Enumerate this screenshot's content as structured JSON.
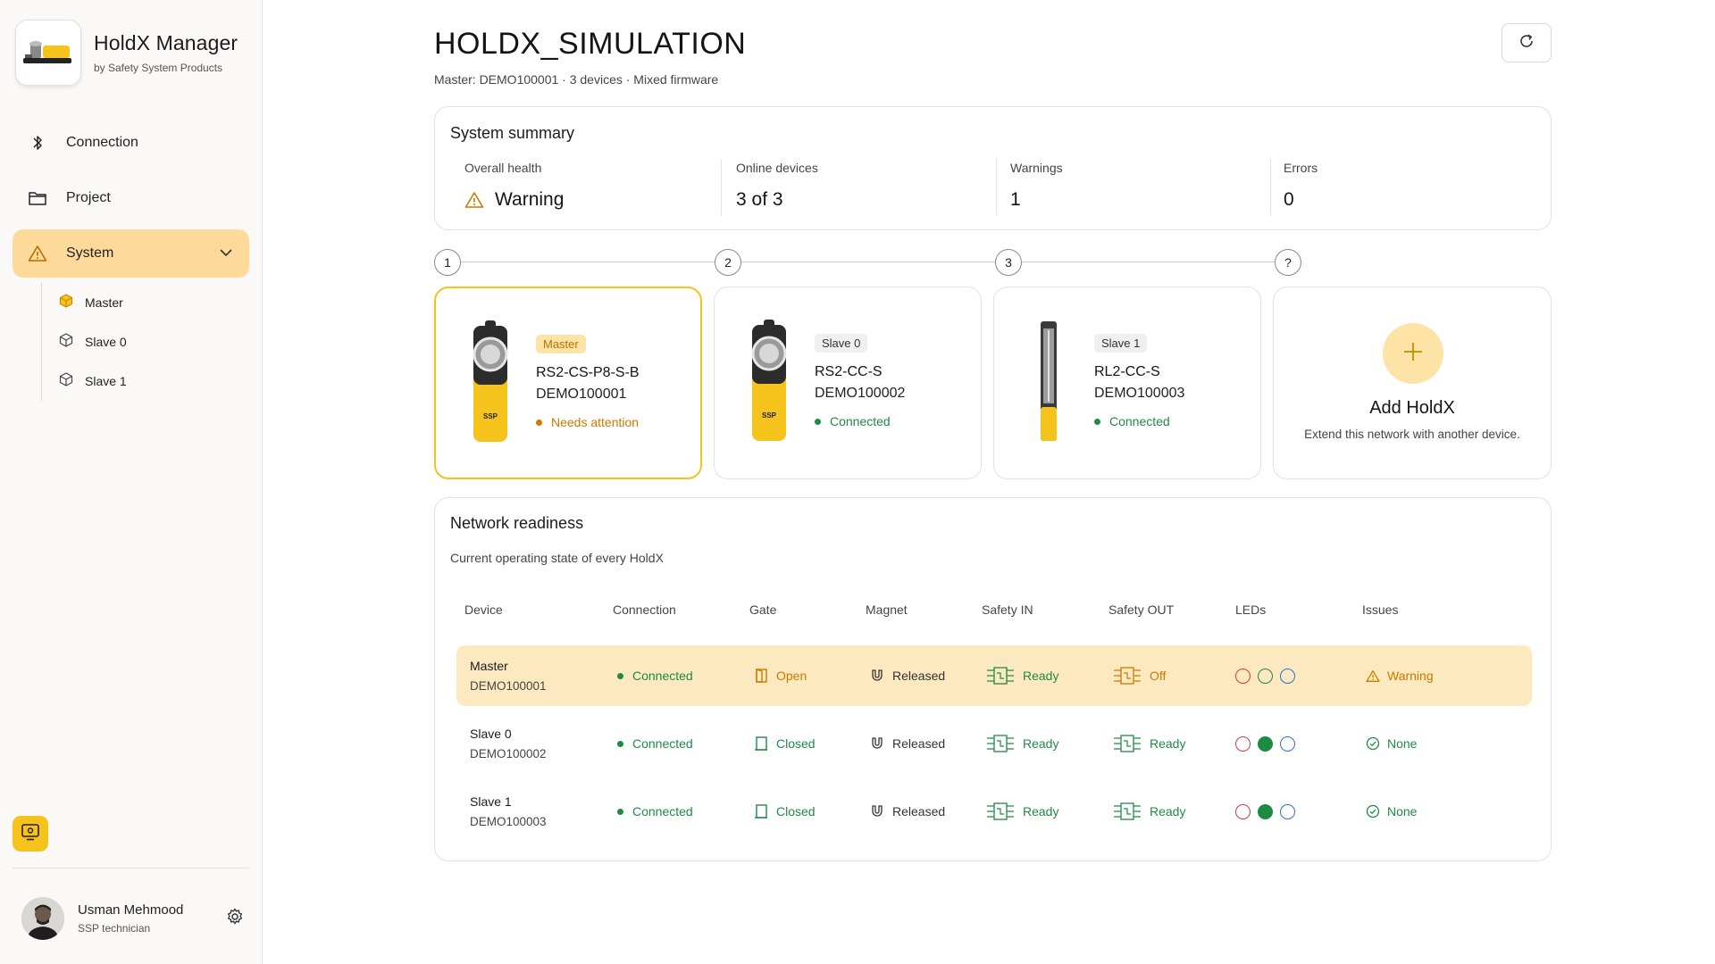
{
  "app": {
    "title": "HoldX Manager",
    "subtitle": "by Safety System Products"
  },
  "nav": {
    "items": [
      {
        "label": "Connection",
        "icon": "bluetooth-icon"
      },
      {
        "label": "Project",
        "icon": "folder-icon"
      },
      {
        "label": "System",
        "icon": "warning-icon",
        "active": true,
        "expanded": true
      }
    ],
    "sub_items": [
      {
        "label": "Master",
        "icon": "cube-icon"
      },
      {
        "label": "Slave 0",
        "icon": "cube-icon"
      },
      {
        "label": "Slave 1",
        "icon": "cube-icon"
      }
    ]
  },
  "user": {
    "name": "Usman Mehmood",
    "role": "SSP technician"
  },
  "header": {
    "title": "HOLDX_SIMULATION",
    "subtitle": "Master: DEMO100001 · 3 devices · Mixed firmware"
  },
  "summary": {
    "title": "System summary",
    "metrics": [
      {
        "label": "Overall health",
        "value": "Warning"
      },
      {
        "label": "Online devices",
        "value": "3 of 3"
      },
      {
        "label": "Warnings",
        "value": "1"
      },
      {
        "label": "Errors",
        "value": "0"
      }
    ]
  },
  "stepper": [
    "1",
    "2",
    "3",
    "?"
  ],
  "devices": [
    {
      "role": "Master",
      "model": "RS2-CS-P8-S-B",
      "serial": "DEMO100001",
      "status": "Needs attention"
    },
    {
      "role": "Slave 0",
      "model": "RS2-CC-S",
      "serial": "DEMO100002",
      "status": "Connected"
    },
    {
      "role": "Slave 1",
      "model": "RL2-CC-S",
      "serial": "DEMO100003",
      "status": "Connected"
    }
  ],
  "add_card": {
    "title": "Add HoldX",
    "subtitle": "Extend this network with another device."
  },
  "readiness": {
    "title": "Network readiness",
    "subtitle": "Current operating state of every HoldX",
    "columns": [
      "Device",
      "Connection",
      "Gate",
      "Magnet",
      "Safety IN",
      "Safety OUT",
      "LEDs",
      "Issues"
    ],
    "rows": [
      {
        "name": "Master",
        "serial": "DEMO100001",
        "connection": "Connected",
        "gate": "Open",
        "magnet": "Released",
        "safety_in": "Ready",
        "safety_out": "Off",
        "leds": [
          "red-outline",
          "green-outline",
          "blue-outline"
        ],
        "issues": "Warning"
      },
      {
        "name": "Slave 0",
        "serial": "DEMO100002",
        "connection": "Connected",
        "gate": "Closed",
        "magnet": "Released",
        "safety_in": "Ready",
        "safety_out": "Ready",
        "leds": [
          "red-outline",
          "green-filled",
          "blue-outline"
        ],
        "issues": "None"
      },
      {
        "name": "Slave 1",
        "serial": "DEMO100003",
        "connection": "Connected",
        "gate": "Closed",
        "magnet": "Released",
        "safety_in": "Ready",
        "safety_out": "Ready",
        "leds": [
          "red-outline",
          "green-filled",
          "blue-outline"
        ],
        "issues": "None"
      }
    ]
  },
  "colors": {
    "accent": "#f6c21c",
    "accent_soft": "#fdd99a",
    "warning": "#c97a00",
    "success": "#1e8a44",
    "led_red": "#d63a3a",
    "led_green": "#1e8a44",
    "led_blue": "#2f6fd0"
  }
}
